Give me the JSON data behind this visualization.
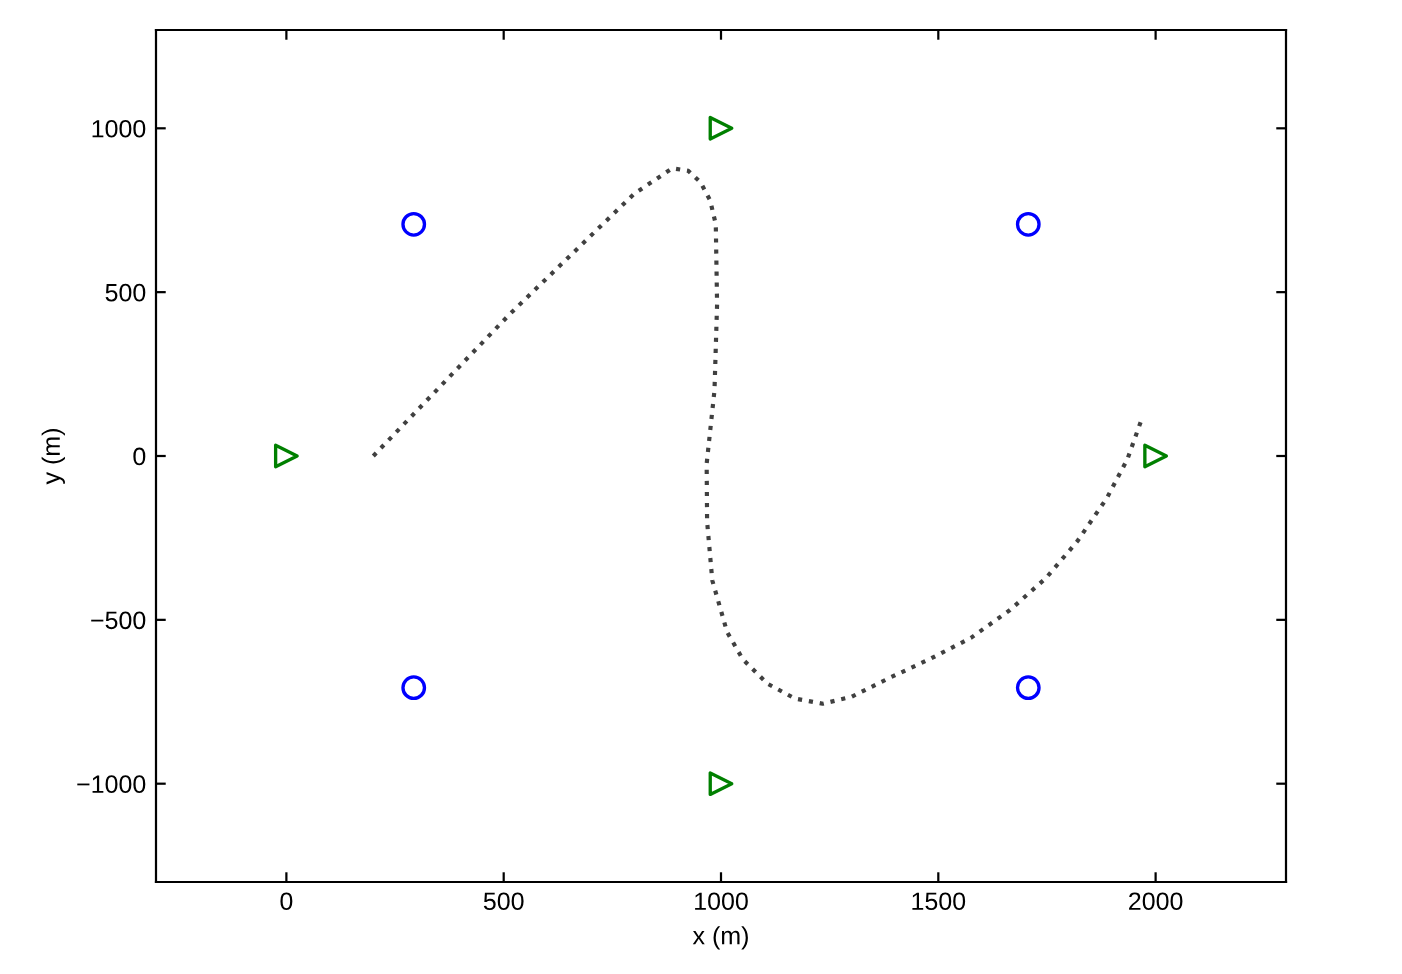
{
  "chart_data": {
    "type": "scatter",
    "xlabel": "x (m)",
    "ylabel": "y (m)",
    "xlim": [
      -300,
      2300
    ],
    "ylim": [
      -1300,
      1300
    ],
    "xticks": [
      0,
      500,
      1000,
      1500,
      2000
    ],
    "yticks": [
      {
        "value": -1000,
        "label": "−1000"
      },
      {
        "value": -500,
        "label": "−500"
      },
      0,
      500,
      1000
    ],
    "grid": false,
    "legend": false,
    "series": [
      {
        "type": "line",
        "color": "#404040",
        "line_style": "dotted",
        "marker": "none",
        "x": [
          200,
          514,
          800,
          888,
          925,
          953,
          975,
          988,
          991,
          985,
          967,
          968,
          980,
          1014,
          1050,
          1107,
          1170,
          1234,
          1300,
          1388,
          1480,
          1575,
          1665,
          1748,
          1820,
          1888,
          1935,
          1970
        ],
        "values": [
          0,
          433,
          800,
          878,
          870,
          835,
          780,
          707,
          463,
          200,
          -24,
          -200,
          -380,
          -537,
          -620,
          -695,
          -740,
          -756,
          -735,
          -677,
          -620,
          -555,
          -470,
          -372,
          -260,
          -128,
          -10,
          120
        ]
      },
      {
        "color": "#0000ff",
        "marker": "circle",
        "x": [
          293,
          293,
          1707,
          1707
        ],
        "values": [
          707,
          -707,
          707,
          -707
        ]
      },
      {
        "color": "#008000",
        "marker": "triangle",
        "x": [
          0,
          1000,
          1000,
          2000
        ],
        "values": [
          0,
          1000,
          -1000,
          0
        ]
      }
    ]
  }
}
